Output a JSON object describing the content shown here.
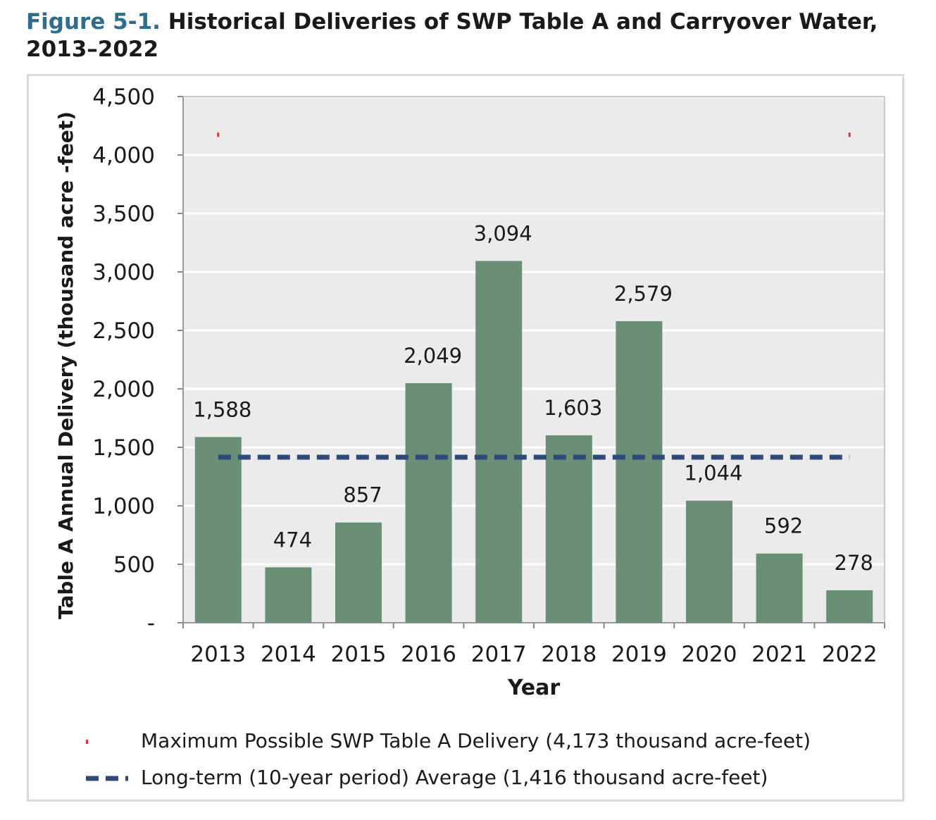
{
  "header": {
    "figure_label": "Figure 5-1.",
    "title_text": " Historical Deliveries of SWP Table A and Carryover Water, 2013–2022"
  },
  "colors": {
    "bar": "#6a8f76",
    "max_marker": "#e8302a",
    "average_line": "#2f4a78",
    "plot_background": "#ebebeb",
    "gridline": "#ffffff",
    "figure_label": "#2e6d8e"
  },
  "chart_data": {
    "type": "bar",
    "xlabel": "Year",
    "ylabel": "Table A Annual Delivery (thousand acre -feet)",
    "ylim": [
      0,
      4500
    ],
    "yticks": [
      0,
      500,
      1000,
      1500,
      2000,
      2500,
      3000,
      3500,
      4000,
      4500
    ],
    "ytick_labels": [
      "-",
      "500",
      "1,000",
      "1,500",
      "2,000",
      "2,500",
      "3,000",
      "3,500",
      "4,000",
      "4,500"
    ],
    "categories": [
      "2013",
      "2014",
      "2015",
      "2016",
      "2017",
      "2018",
      "2019",
      "2020",
      "2021",
      "2022"
    ],
    "values": [
      1588,
      474,
      857,
      2049,
      3094,
      1603,
      2579,
      1044,
      592,
      278
    ],
    "data_labels": [
      "1,588",
      "474",
      "857",
      "2,049",
      "3,094",
      "1,603",
      "2,579",
      "1,044",
      "592",
      "278"
    ],
    "grid": true,
    "legend_position": "bottom",
    "reference_lines": [
      {
        "name": "Maximum Possible SWP Table A Delivery (4,173 thousand acre-feet)",
        "value": 4173,
        "style": "dotted",
        "color": "#e8302a"
      },
      {
        "name": "Long-term (10-year period) Average (1,416 thousand acre-feet)",
        "value": 1416,
        "style": "dashed",
        "color": "#2f4a78"
      }
    ]
  }
}
